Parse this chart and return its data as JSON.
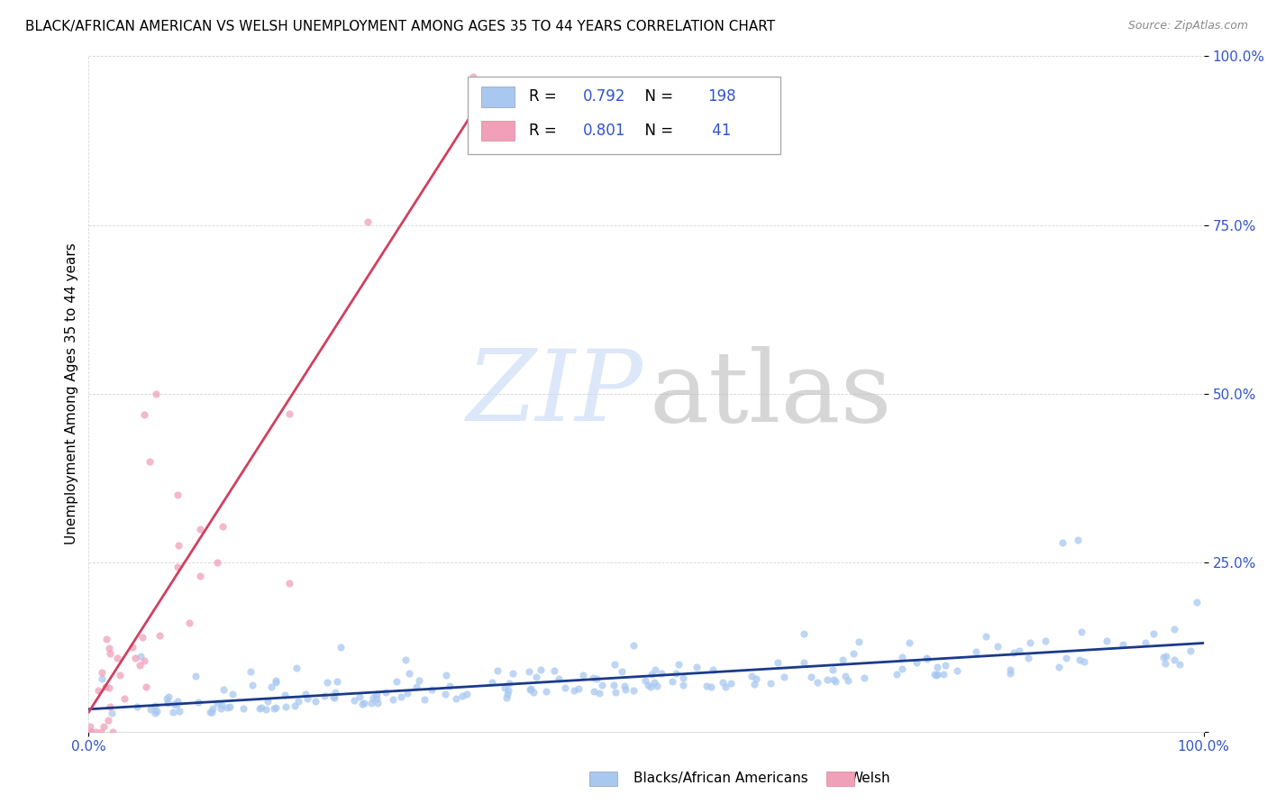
{
  "title": "BLACK/AFRICAN AMERICAN VS WELSH UNEMPLOYMENT AMONG AGES 35 TO 44 YEARS CORRELATION CHART",
  "source": "Source: ZipAtlas.com",
  "ylabel": "Unemployment Among Ages 35 to 44 years",
  "blue_color": "#A8C8F0",
  "pink_color": "#F0A0B8",
  "blue_line_color": "#1A3A8A",
  "pink_line_color": "#D04060",
  "legend_R_blue": "0.792",
  "legend_N_blue": "198",
  "legend_R_pink": "0.801",
  "legend_N_pink": "41",
  "legend_color": "#3355CC",
  "xtick_color": "#3355CC",
  "ytick_color": "#3355CC",
  "title_fontsize": 11,
  "source_fontsize": 9,
  "tick_fontsize": 11,
  "legend_fontsize": 12
}
